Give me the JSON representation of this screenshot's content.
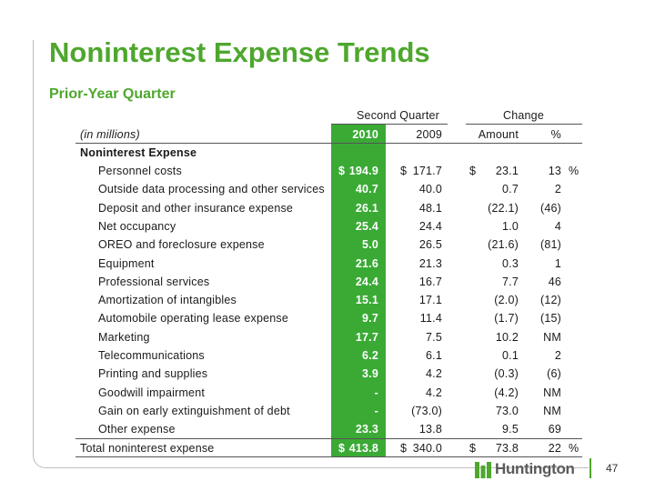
{
  "title": "Noninterest Expense Trends",
  "subtitle": "Prior-Year Quarter",
  "header": {
    "group_quarter": "Second Quarter",
    "group_change": "Change",
    "units": "(in millions)",
    "col_2010": "2010",
    "col_2009": "2009",
    "col_amount": "Amount",
    "col_pct": "%"
  },
  "section_label": "Noninterest Expense",
  "rows": [
    {
      "label": "Personnel costs",
      "cur_sym": "$",
      "v2010": "194.9",
      "sym2009": "$",
      "v2009": "171.7",
      "amt_sym": "$",
      "amount": "23.1",
      "pct": "13",
      "pct_sym": "%"
    },
    {
      "label": "Outside data processing and other services",
      "v2010": "40.7",
      "v2009": "40.0",
      "amount": "0.7",
      "pct": "2"
    },
    {
      "label": "Deposit and other insurance expense",
      "v2010": "26.1",
      "v2009": "48.1",
      "amount": "(22.1)",
      "pct": "(46)"
    },
    {
      "label": "Net occupancy",
      "v2010": "25.4",
      "v2009": "24.4",
      "amount": "1.0",
      "pct": "4"
    },
    {
      "label": "OREO and foreclosure expense",
      "v2010": "5.0",
      "v2009": "26.5",
      "amount": "(21.6)",
      "pct": "(81)"
    },
    {
      "label": "Equipment",
      "v2010": "21.6",
      "v2009": "21.3",
      "amount": "0.3",
      "pct": "1"
    },
    {
      "label": "Professional services",
      "v2010": "24.4",
      "v2009": "16.7",
      "amount": "7.7",
      "pct": "46"
    },
    {
      "label": "Amortization of intangibles",
      "v2010": "15.1",
      "v2009": "17.1",
      "amount": "(2.0)",
      "pct": "(12)"
    },
    {
      "label": "Automobile operating lease expense",
      "v2010": "9.7",
      "v2009": "11.4",
      "amount": "(1.7)",
      "pct": "(15)"
    },
    {
      "label": "Marketing",
      "v2010": "17.7",
      "v2009": "7.5",
      "amount": "10.2",
      "pct": "NM"
    },
    {
      "label": "Telecommunications",
      "v2010": "6.2",
      "v2009": "6.1",
      "amount": "0.1",
      "pct": "2"
    },
    {
      "label": "Printing and supplies",
      "v2010": "3.9",
      "v2009": "4.2",
      "amount": "(0.3)",
      "pct": "(6)"
    },
    {
      "label": "Goodwill impairment",
      "v2010": "-",
      "v2009": "4.2",
      "amount": "(4.2)",
      "pct": "NM"
    },
    {
      "label": "Gain on early extinguishment of debt",
      "v2010": "-",
      "v2009": "(73.0)",
      "amount": "73.0",
      "pct": "NM"
    },
    {
      "label": "Other expense",
      "v2010": "23.3",
      "v2009": "13.8",
      "amount": "9.5",
      "pct": "69"
    }
  ],
  "total": {
    "label": "Total noninterest expense",
    "cur_sym": "$",
    "v2010": "413.8",
    "sym2009": "$",
    "v2009": "340.0",
    "amt_sym": "$",
    "amount": "73.8",
    "pct": "22",
    "pct_sym": "%"
  },
  "footer": {
    "logo_text": "Huntington",
    "page_number": "47"
  },
  "colors": {
    "brand_green": "#4ea72e",
    "column_highlight": "#3aaa35"
  }
}
